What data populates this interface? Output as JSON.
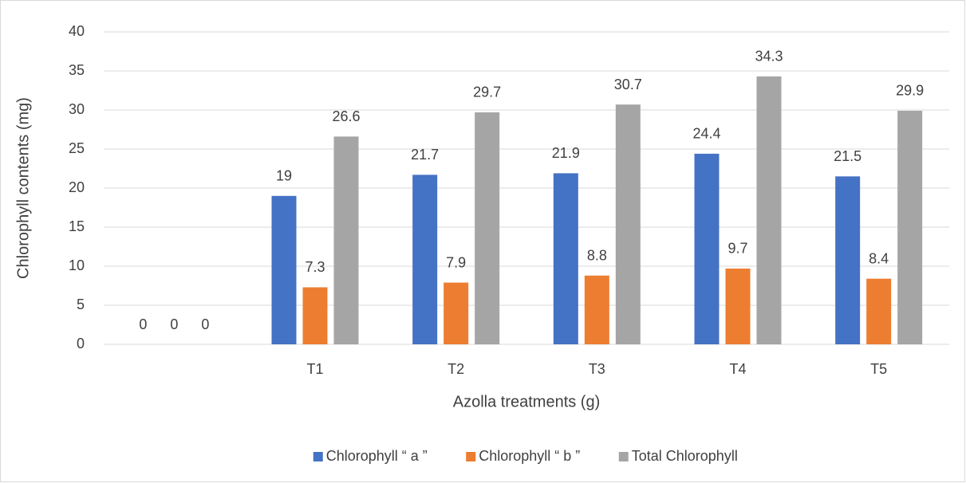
{
  "chart_data": {
    "type": "bar",
    "xlabel": "Azolla treatments (g)",
    "ylabel": "Chlorophyll contents (mg)",
    "categories": [
      null,
      "T1",
      "T2",
      "T3",
      "T4",
      "T5"
    ],
    "series": [
      {
        "name": "Chlorophyll “ a ”",
        "color": "#4472c4",
        "values": [
          0,
          19,
          21.7,
          21.9,
          24.4,
          21.5
        ]
      },
      {
        "name": "Chlorophyll “ b ”",
        "color": "#ed7d31",
        "values": [
          0,
          7.3,
          7.9,
          8.8,
          9.7,
          8.4
        ]
      },
      {
        "name": "Total Chlorophyll",
        "color": "#a5a5a5",
        "values": [
          0,
          26.6,
          29.7,
          30.7,
          34.3,
          29.9
        ]
      }
    ],
    "ylim": [
      0,
      40
    ],
    "yticks": [
      0,
      5,
      10,
      15,
      20,
      25,
      30,
      35,
      40
    ],
    "grid": true,
    "legend": "bottom"
  }
}
